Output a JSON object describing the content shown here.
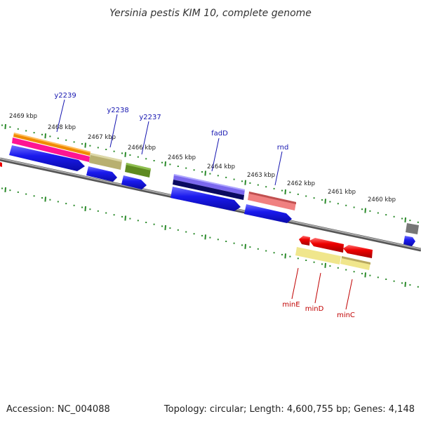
{
  "header": {
    "title": "Yersinia pestis KIM 10, complete genome"
  },
  "footer": {
    "accession": "Accession: NC_004088",
    "summary": "Topology: circular; Length: 4,600,755 bp; Genes: 4,148"
  },
  "scale_labels": [
    "2469 kbp",
    "2468 kbp",
    "2467 kbp",
    "2466 kbp",
    "2465 kbp",
    "2464 kbp",
    "2463 kbp",
    "2462 kbp",
    "2461 kbp",
    "2460 kbp"
  ],
  "gene_labels": {
    "y2239": "y2239",
    "y2238": "y2238",
    "y2237": "y2237",
    "fadD": "fadD",
    "rnd": "rnd",
    "minE": "minE",
    "minD": "minD",
    "minC": "minC"
  },
  "colors": {
    "backbone": "#8a8a8a",
    "tick": "#2a8a2a",
    "cds": "#1a1aee",
    "label_blue": "#1515b0",
    "label_red": "#c00000"
  }
}
